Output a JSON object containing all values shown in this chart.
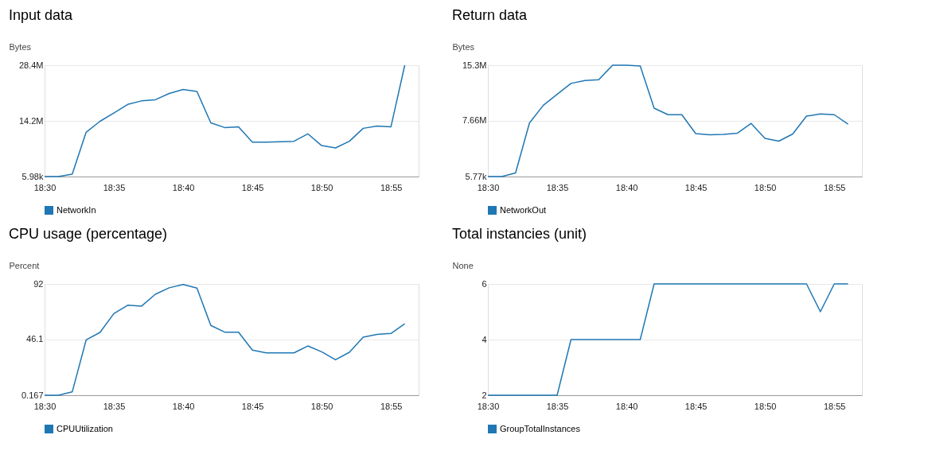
{
  "chart_data": [
    {
      "type": "line",
      "title": "Input data",
      "ylabel": "Bytes",
      "grid": "y",
      "legend": "bottom",
      "x": [
        18.5,
        18.5167,
        18.5333,
        18.55,
        18.5667,
        18.5833,
        18.6,
        18.6167,
        18.6333,
        18.65,
        18.6667,
        18.6833,
        18.7,
        18.7167,
        18.7333,
        18.75,
        18.7667,
        18.7833,
        18.8,
        18.8167,
        18.8333,
        18.85,
        18.8667,
        18.8833,
        18.9,
        18.9167,
        18.9333
      ],
      "series": [
        {
          "name": "NetworkIn",
          "color": "#1f77b4",
          "values": [
            5980,
            5980,
            600000,
            11300000,
            14100000,
            16200000,
            18400000,
            19300000,
            19600000,
            21200000,
            22200000,
            21700000,
            13700000,
            12500000,
            12700000,
            8800000,
            8800000,
            8900000,
            9000000,
            10900000,
            7900000,
            7300000,
            9000000,
            12300000,
            12900000,
            12700000,
            28400000
          ]
        }
      ],
      "xlim": [
        18.5,
        18.95
      ],
      "xticks": [
        {
          "value": 18.5,
          "label": "18:30"
        },
        {
          "value": 18.5833,
          "label": "18:35"
        },
        {
          "value": 18.6667,
          "label": "18:40"
        },
        {
          "value": 18.75,
          "label": "18:45"
        },
        {
          "value": 18.8333,
          "label": "18:50"
        },
        {
          "value": 18.9167,
          "label": "18:55"
        }
      ],
      "ylim": [
        5980,
        28400000
      ],
      "yticks": [
        {
          "value": 5980,
          "label": "5.98k"
        },
        {
          "value": 14200000,
          "label": "14.2M"
        },
        {
          "value": 28400000,
          "label": "28.4M"
        }
      ]
    },
    {
      "type": "line",
      "title": "Return data",
      "ylabel": "Bytes",
      "grid": "y",
      "legend": "bottom",
      "x": [
        18.5,
        18.5167,
        18.5333,
        18.55,
        18.5667,
        18.5833,
        18.6,
        18.6167,
        18.6333,
        18.65,
        18.6667,
        18.6833,
        18.7,
        18.7167,
        18.7333,
        18.75,
        18.7667,
        18.7833,
        18.8,
        18.8167,
        18.8333,
        18.85,
        18.8667,
        18.8833,
        18.9,
        18.9167,
        18.9333
      ],
      "series": [
        {
          "name": "NetworkOut",
          "color": "#1f77b4",
          "values": [
            5770,
            5770,
            500000,
            7350000,
            9800000,
            11300000,
            12800000,
            13200000,
            13300000,
            15300000,
            15300000,
            15200000,
            9400000,
            8500000,
            8500000,
            5900000,
            5750000,
            5800000,
            5950000,
            7300000,
            5250000,
            4870000,
            5850000,
            8300000,
            8600000,
            8500000,
            7200000
          ]
        }
      ],
      "xlim": [
        18.5,
        18.95
      ],
      "xticks": [
        {
          "value": 18.5,
          "label": "18:30"
        },
        {
          "value": 18.5833,
          "label": "18:35"
        },
        {
          "value": 18.6667,
          "label": "18:40"
        },
        {
          "value": 18.75,
          "label": "18:45"
        },
        {
          "value": 18.8333,
          "label": "18:50"
        },
        {
          "value": 18.9167,
          "label": "18:55"
        }
      ],
      "ylim": [
        5770,
        15300000
      ],
      "yticks": [
        {
          "value": 5770,
          "label": "5.77k"
        },
        {
          "value": 7660000,
          "label": "7.66M"
        },
        {
          "value": 15300000,
          "label": "15.3M"
        }
      ]
    },
    {
      "type": "line",
      "title": "CPU usage (percentage)",
      "ylabel": "Percent",
      "grid": "y",
      "legend": "bottom",
      "x": [
        18.5,
        18.5167,
        18.5333,
        18.55,
        18.5667,
        18.5833,
        18.6,
        18.6167,
        18.6333,
        18.65,
        18.6667,
        18.6833,
        18.7,
        18.7167,
        18.7333,
        18.75,
        18.7667,
        18.7833,
        18.8,
        18.8167,
        18.8333,
        18.85,
        18.8667,
        18.8833,
        18.9,
        18.9167,
        18.9333
      ],
      "series": [
        {
          "name": "CPUUtilization",
          "color": "#1f77b4",
          "values": [
            0.167,
            0.167,
            2.9,
            45.8,
            52,
            67.5,
            74.4,
            73.7,
            83.5,
            88.8,
            91.5,
            88.5,
            57.7,
            52.2,
            52.2,
            37.4,
            35.1,
            35.1,
            35.1,
            40.8,
            36,
            29.4,
            35.6,
            48.1,
            50.4,
            51.1,
            59.1
          ]
        }
      ],
      "xlim": [
        18.5,
        18.95
      ],
      "xticks": [
        {
          "value": 18.5,
          "label": "18:30"
        },
        {
          "value": 18.5833,
          "label": "18:35"
        },
        {
          "value": 18.6667,
          "label": "18:40"
        },
        {
          "value": 18.75,
          "label": "18:45"
        },
        {
          "value": 18.8333,
          "label": "18:50"
        },
        {
          "value": 18.9167,
          "label": "18:55"
        }
      ],
      "ylim": [
        0.167,
        92
      ],
      "yticks": [
        0.167,
        46.1,
        92
      ]
    },
    {
      "type": "line",
      "title": "Total instancies  (unit)",
      "ylabel": "None",
      "grid": "y",
      "legend": "bottom",
      "x": [
        18.5,
        18.5167,
        18.5333,
        18.55,
        18.5667,
        18.5833,
        18.6,
        18.6167,
        18.6333,
        18.65,
        18.6667,
        18.6833,
        18.7,
        18.7167,
        18.7333,
        18.75,
        18.7667,
        18.7833,
        18.8,
        18.8167,
        18.8333,
        18.85,
        18.8667,
        18.8833,
        18.9,
        18.9167,
        18.9333
      ],
      "series": [
        {
          "name": "GroupTotalInstances",
          "color": "#1f77b4",
          "values": [
            2,
            2,
            2,
            2,
            2,
            2,
            4,
            4,
            4,
            4,
            4,
            4,
            6,
            6,
            6,
            6,
            6,
            6,
            6,
            6,
            6,
            6,
            6,
            6,
            5,
            6,
            6
          ]
        }
      ],
      "xlim": [
        18.5,
        18.95
      ],
      "xticks": [
        {
          "value": 18.5,
          "label": "18:30"
        },
        {
          "value": 18.5833,
          "label": "18:35"
        },
        {
          "value": 18.6667,
          "label": "18:40"
        },
        {
          "value": 18.75,
          "label": "18:45"
        },
        {
          "value": 18.8333,
          "label": "18:50"
        },
        {
          "value": 18.9167,
          "label": "18:55"
        }
      ],
      "ylim": [
        2,
        6
      ],
      "yticks": [
        2,
        4,
        6
      ]
    }
  ]
}
